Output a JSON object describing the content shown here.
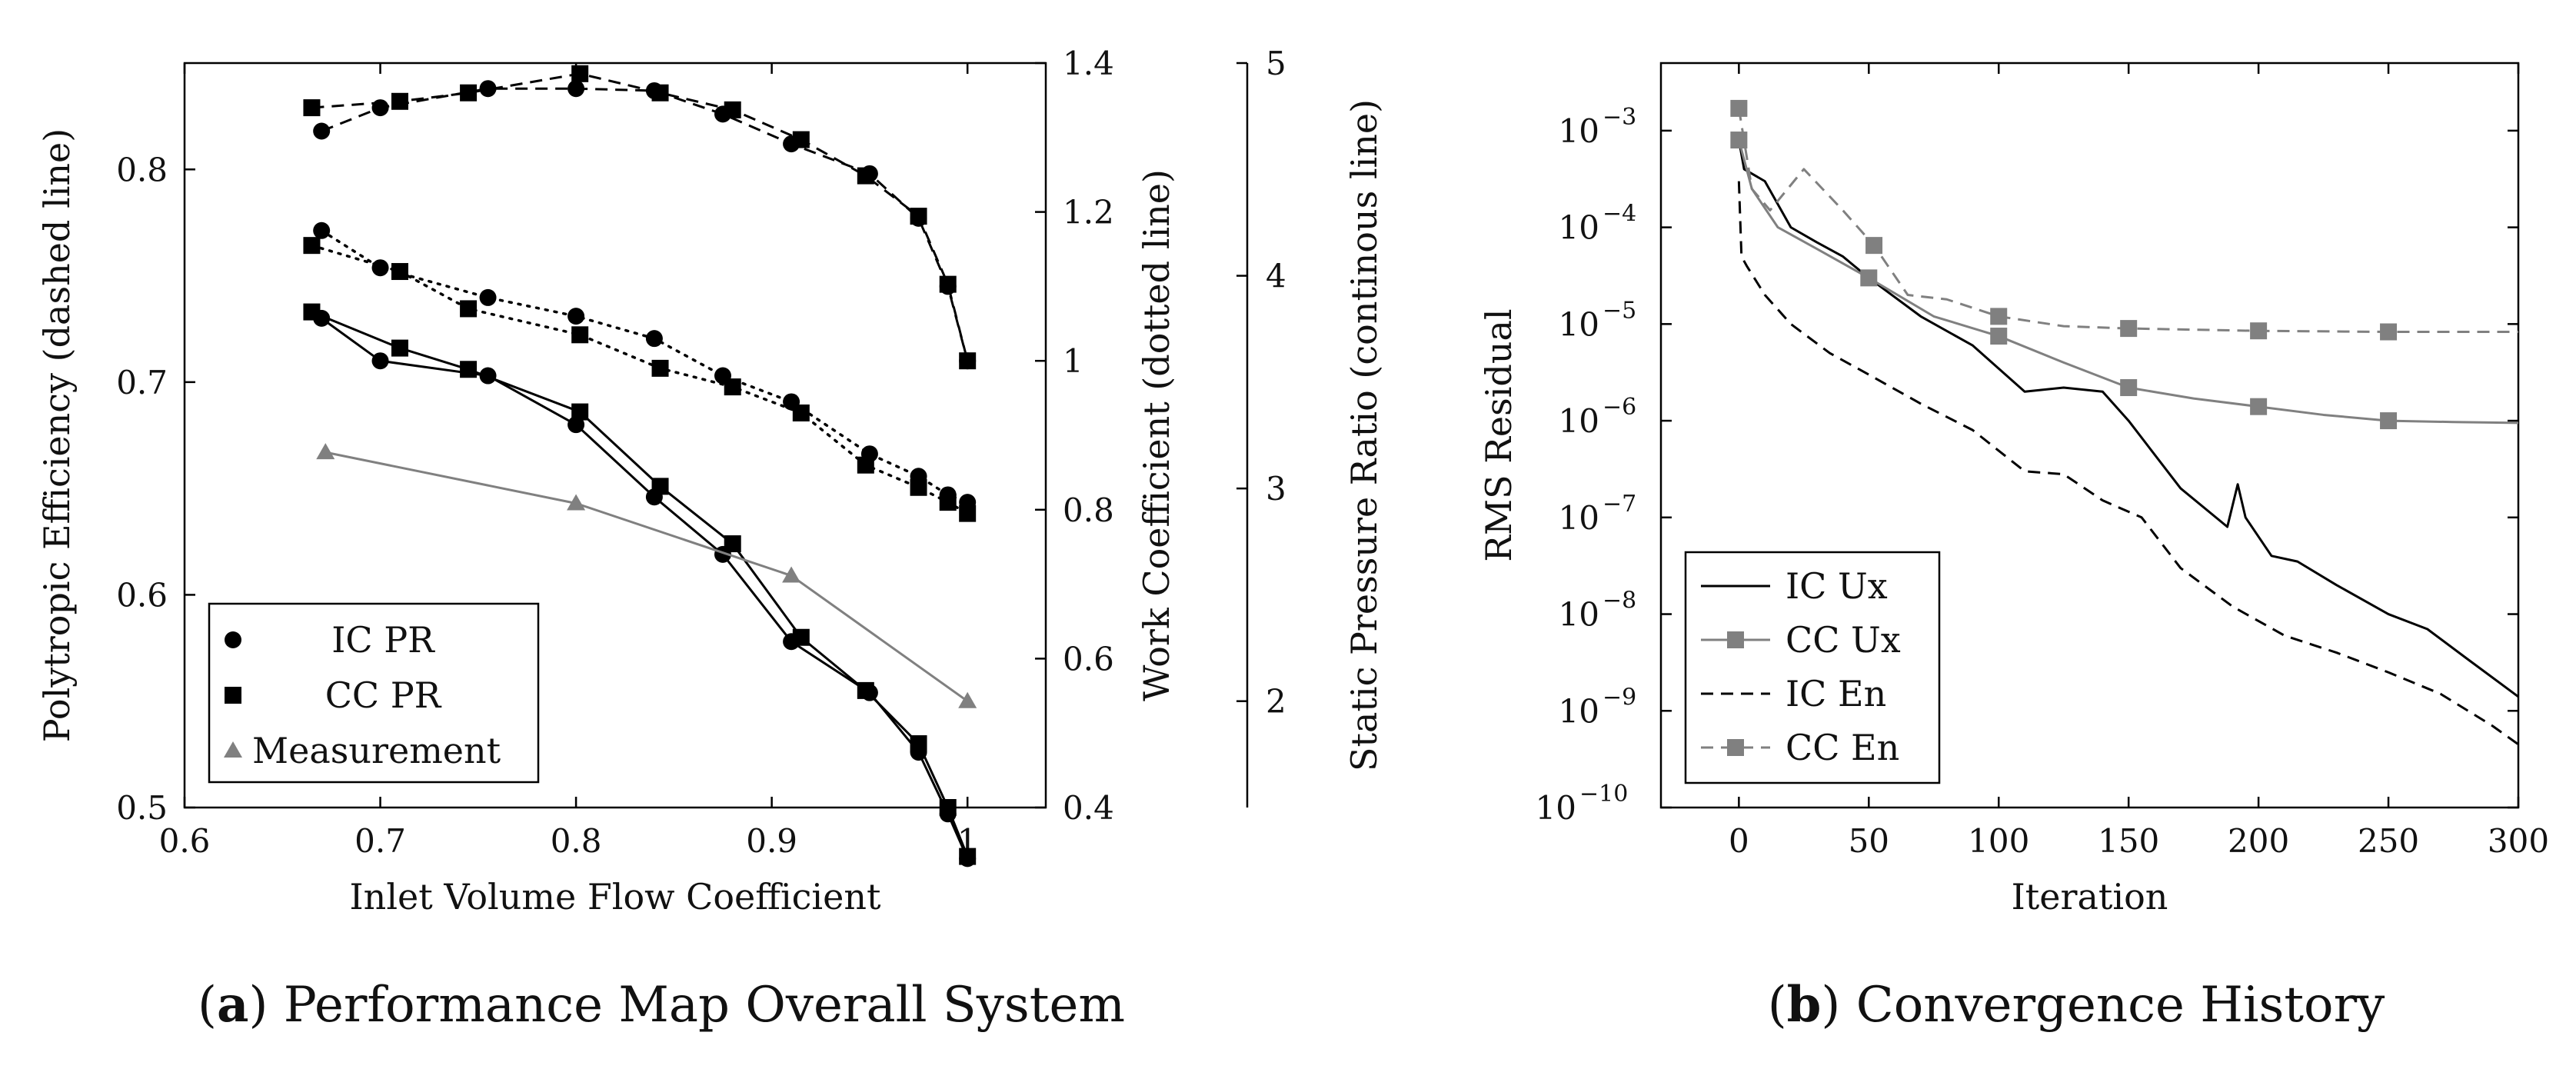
{
  "chart_data": [
    {
      "type": "line",
      "caption": {
        "letter": "a",
        "text": "Performance Map Overall System"
      },
      "xlabel": "Inlet Volume Flow Coefficient",
      "xlim": [
        0.6,
        1.04
      ],
      "xticks": [
        "0.6",
        "0.7",
        "0.8",
        "0.9",
        "1"
      ],
      "xtick_values": [
        0.6,
        0.7,
        0.8,
        0.9,
        1.0
      ],
      "axes": {
        "efficiency": {
          "label": "Polytropic Efficiency (dashed line)",
          "lim": [
            0.5,
            0.85
          ],
          "ticks": [
            "0.5",
            "0.6",
            "0.7",
            "0.8"
          ],
          "tick_values": [
            0.5,
            0.6,
            0.7,
            0.8
          ]
        },
        "work": {
          "label": "Work Coefficient (dotted line)",
          "lim": [
            0.4,
            1.4
          ],
          "ticks": [
            "0.4",
            "0.6",
            "0.8",
            "1",
            "1.2",
            "1.4"
          ],
          "tick_values": [
            0.4,
            0.6,
            0.8,
            1.0,
            1.2,
            1.4
          ]
        },
        "pressure": {
          "label": "Static Pressure Ratio (continous line)",
          "lim": [
            1.5,
            5
          ],
          "ticks": [
            "2",
            "3",
            "4",
            "5"
          ],
          "tick_values": [
            2,
            3,
            4,
            5
          ]
        }
      },
      "legend": {
        "position": "bottom-left",
        "entries": [
          "IC PR",
          "CC PR",
          "Measurement"
        ]
      },
      "series": [
        {
          "name": "IC PR",
          "quantity": "efficiency",
          "style": "dashed",
          "marker": "circle",
          "x": [
            0.67,
            0.7,
            0.755,
            0.8,
            0.84,
            0.875,
            0.91,
            0.95,
            0.975,
            0.99,
            1.0
          ],
          "y": [
            0.818,
            0.829,
            0.838,
            0.838,
            0.837,
            0.826,
            0.812,
            0.798,
            0.777,
            0.745,
            0.71
          ]
        },
        {
          "name": "CC PR",
          "quantity": "efficiency",
          "style": "dashed",
          "marker": "square",
          "x": [
            0.665,
            0.71,
            0.745,
            0.802,
            0.843,
            0.88,
            0.915,
            0.948,
            0.975,
            0.99,
            1.0
          ],
          "y": [
            0.829,
            0.832,
            0.836,
            0.845,
            0.836,
            0.828,
            0.814,
            0.797,
            0.778,
            0.746,
            0.71
          ]
        },
        {
          "name": "IC PR",
          "quantity": "work",
          "style": "dotted",
          "marker": "circle",
          "x": [
            0.67,
            0.7,
            0.755,
            0.8,
            0.84,
            0.875,
            0.91,
            0.95,
            0.975,
            0.99,
            1.0
          ],
          "y": [
            1.175,
            1.125,
            1.085,
            1.06,
            1.03,
            0.98,
            0.945,
            0.875,
            0.845,
            0.82,
            0.81
          ]
        },
        {
          "name": "CC PR",
          "quantity": "work",
          "style": "dotted",
          "marker": "square",
          "x": [
            0.665,
            0.71,
            0.745,
            0.802,
            0.843,
            0.88,
            0.915,
            0.948,
            0.975,
            0.99,
            1.0
          ],
          "y": [
            1.155,
            1.12,
            1.07,
            1.035,
            0.99,
            0.965,
            0.93,
            0.86,
            0.83,
            0.81,
            0.795
          ]
        },
        {
          "name": "IC PR",
          "quantity": "pressure",
          "style": "solid",
          "marker": "circle",
          "x": [
            0.67,
            0.7,
            0.755,
            0.8,
            0.84,
            0.875,
            0.91,
            0.95,
            0.975,
            0.99,
            1.0
          ],
          "y": [
            3.8,
            3.6,
            3.53,
            3.3,
            2.96,
            2.69,
            2.28,
            2.04,
            1.76,
            1.47,
            1.26
          ]
        },
        {
          "name": "CC PR",
          "quantity": "pressure",
          "style": "solid",
          "marker": "square",
          "x": [
            0.665,
            0.71,
            0.745,
            0.802,
            0.843,
            0.88,
            0.915,
            0.948,
            0.975,
            0.99,
            1.0
          ],
          "y": [
            3.83,
            3.66,
            3.56,
            3.36,
            3.01,
            2.74,
            2.3,
            2.05,
            1.8,
            1.5,
            1.27
          ]
        },
        {
          "name": "Measurement",
          "quantity": "efficiency",
          "style": "solid",
          "marker": "triangle",
          "color": "#808080",
          "x": [
            0.672,
            0.8,
            0.91,
            1.0
          ],
          "y": [
            0.667,
            0.643,
            0.609,
            0.55
          ]
        }
      ]
    },
    {
      "type": "line",
      "caption": {
        "letter": "b",
        "text": "Convergence History"
      },
      "xlabel": "Iteration",
      "ylabel": "RMS Residual",
      "yscale": "log",
      "xlim": [
        -30,
        300
      ],
      "ylim": [
        1e-10,
        0.005
      ],
      "xticks": [
        "0",
        "50",
        "100",
        "150",
        "200",
        "250",
        "300"
      ],
      "xtick_values": [
        0,
        50,
        100,
        150,
        200,
        250,
        300
      ],
      "yticks": [
        "10",
        "10",
        "10",
        "10",
        "10",
        "10",
        "10",
        "10"
      ],
      "ytick_exponents": [
        "−10",
        "−9",
        "−8",
        "−7",
        "−6",
        "−5",
        "−4",
        "−3"
      ],
      "ytick_values": [
        -10,
        -9,
        -8,
        -7,
        -6,
        -5,
        -4,
        -3
      ],
      "legend": {
        "position": "bottom-left",
        "entries": [
          "IC Ux",
          "CC Ux",
          "IC En",
          "CC En"
        ]
      },
      "series": [
        {
          "name": "IC Ux",
          "style": "solid",
          "color": "#000000",
          "x": [
            0,
            2,
            10,
            20,
            30,
            40,
            50,
            70,
            90,
            110,
            125,
            140,
            150,
            170,
            188,
            192,
            195,
            205,
            215,
            230,
            250,
            265,
            280,
            300
          ],
          "y": [
            0.0008,
            0.0004,
            0.0003,
            0.0001,
            7e-05,
            5e-05,
            3e-05,
            1.2e-05,
            6e-06,
            2e-06,
            2.2e-06,
            2e-06,
            1e-06,
            2e-07,
            8e-08,
            2.2e-07,
            1e-07,
            4e-08,
            3.5e-08,
            2e-08,
            1e-08,
            7e-09,
            3.5e-09,
            1.4e-09
          ]
        },
        {
          "name": "CC Ux",
          "style": "solid",
          "color": "#808080",
          "marker": "square",
          "x": [
            0,
            5,
            15,
            30,
            50,
            75,
            100,
            125,
            150,
            175,
            200,
            225,
            250,
            275,
            300
          ],
          "y": [
            0.0008,
            0.00025,
            0.0001,
            6e-05,
            3e-05,
            1.2e-05,
            7.5e-06,
            4e-06,
            2.2e-06,
            1.7e-06,
            1.4e-06,
            1.15e-06,
            1e-06,
            9.7e-07,
            9.5e-07
          ],
          "marker_x": [
            0,
            50,
            100,
            150,
            200,
            250
          ],
          "marker_y": [
            0.0008,
            3e-05,
            7.5e-06,
            2.2e-06,
            1.4e-06,
            1e-06
          ]
        },
        {
          "name": "IC En",
          "style": "dashed",
          "color": "#000000",
          "x": [
            0,
            1,
            3,
            10,
            20,
            35,
            50,
            70,
            90,
            110,
            125,
            140,
            155,
            170,
            190,
            210,
            230,
            250,
            270,
            290,
            300
          ],
          "y": [
            0.0003,
            5e-05,
            4e-05,
            2e-05,
            1e-05,
            5e-06,
            3e-06,
            1.5e-06,
            8e-07,
            3e-07,
            2.8e-07,
            1.5e-07,
            1e-07,
            3e-08,
            1.2e-08,
            6e-09,
            4e-09,
            2.5e-09,
            1.5e-09,
            7e-10,
            4.5e-10
          ]
        },
        {
          "name": "CC En",
          "style": "dashed",
          "color": "#808080",
          "marker": "square",
          "x": [
            0,
            5,
            12,
            25,
            40,
            52,
            65,
            80,
            100,
            125,
            150,
            200,
            250,
            300
          ],
          "y": [
            0.0017,
            0.00025,
            0.00015,
            0.0004,
            0.00015,
            6.5e-05,
            2e-05,
            1.8e-05,
            1.2e-05,
            9.5e-06,
            9e-06,
            8.5e-06,
            8.3e-06,
            8.3e-06
          ],
          "marker_x": [
            0,
            52,
            100,
            150,
            200,
            250
          ],
          "marker_y": [
            0.0017,
            6.5e-05,
            1.2e-05,
            9e-06,
            8.5e-06,
            8.3e-06
          ]
        }
      ]
    }
  ]
}
